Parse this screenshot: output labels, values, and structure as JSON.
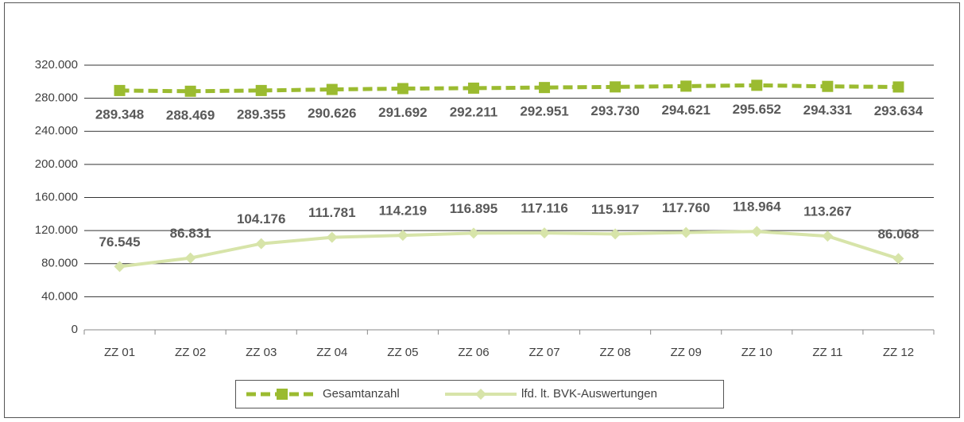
{
  "chart_data": {
    "type": "line",
    "categories": [
      "ZZ 01",
      "ZZ 02",
      "ZZ 03",
      "ZZ 04",
      "ZZ 05",
      "ZZ 06",
      "ZZ 07",
      "ZZ 08",
      "ZZ 09",
      "ZZ 10",
      "ZZ 11",
      "ZZ 12"
    ],
    "series": [
      {
        "name": "Gesamtanzahl",
        "color": "#9bbb30",
        "dashed": true,
        "marker": "square",
        "values": [
          289348,
          288469,
          289355,
          290626,
          291692,
          292211,
          292951,
          293730,
          294621,
          295652,
          294331,
          293634
        ],
        "value_labels": [
          "289.348",
          "288.469",
          "289.355",
          "290.626",
          "291.692",
          "292.211",
          "292.951",
          "293.730",
          "294.621",
          "295.652",
          "294.331",
          "293.634"
        ]
      },
      {
        "name": "lfd. lt. BVK-Auswertungen",
        "color": "#d7e4a9",
        "dashed": false,
        "marker": "diamond",
        "values": [
          76545,
          86831,
          104176,
          111781,
          114219,
          116895,
          117116,
          115917,
          117760,
          118964,
          113267,
          86068
        ],
        "value_labels": [
          "76.545",
          "86.831",
          "104.176",
          "111.781",
          "114.219",
          "116.895",
          "117.116",
          "115.917",
          "117.760",
          "118.964",
          "113.267",
          "86.068"
        ]
      }
    ],
    "ylim": [
      0,
      320000
    ],
    "yticks": [
      0,
      {
        "value": 40000,
        "label": "40.000"
      },
      {
        "value": 80000,
        "label": "80.000"
      },
      {
        "value": 120000,
        "label": "120.000"
      },
      {
        "value": 160000,
        "label": "160.000"
      },
      {
        "value": 200000,
        "label": "200.000"
      },
      {
        "value": 240000,
        "label": "240.000"
      },
      {
        "value": 280000,
        "label": "280.000"
      },
      {
        "value": 320000,
        "label": "320.000"
      }
    ],
    "grid": true,
    "legend": "bottom"
  }
}
